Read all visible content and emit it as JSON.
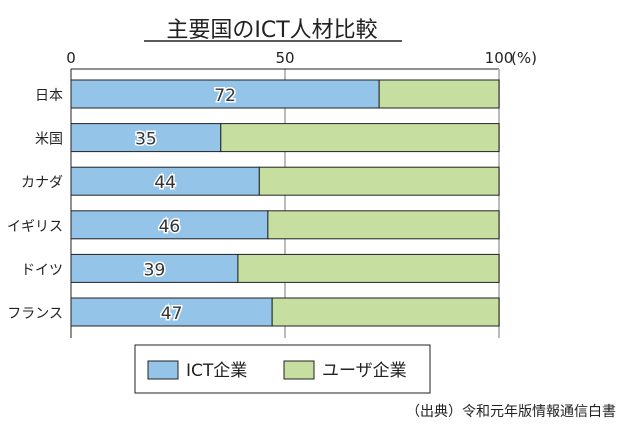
{
  "chart_data": {
    "type": "bar",
    "orientation": "horizontal",
    "stacked": true,
    "title": "主要国のICT人材比較",
    "categories": [
      "日本",
      "米国",
      "カナダ",
      "イギリス",
      "ドイツ",
      "フランス"
    ],
    "series": [
      {
        "name": "ICT企業",
        "values": [
          72,
          35,
          44,
          46,
          39,
          47
        ],
        "color": "#94c4e8"
      },
      {
        "name": "ユーザ企業",
        "values": [
          28,
          65,
          56,
          54,
          61,
          53
        ],
        "color": "#c6dfa0"
      }
    ],
    "xlim": [
      0,
      100
    ],
    "xticks": [
      "0",
      "50",
      "100"
    ],
    "xunit": "(%)",
    "grid": true,
    "legend": "bottom",
    "source": "（出典）令和元年版情報通信白書"
  }
}
